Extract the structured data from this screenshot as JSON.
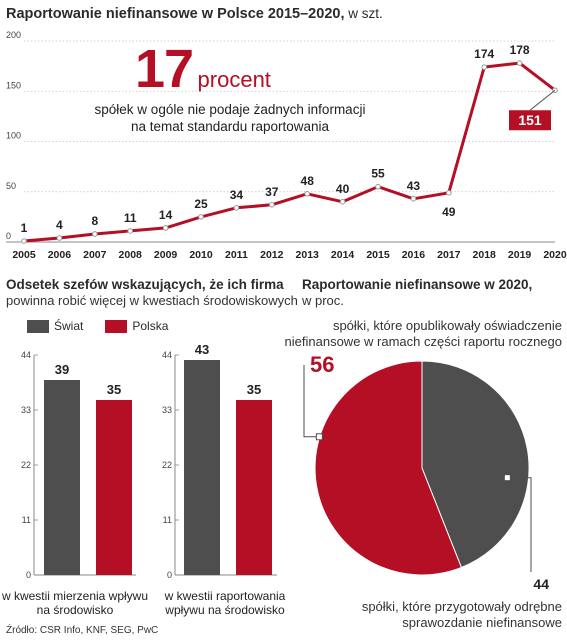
{
  "header": {
    "title": "Raportowanie niefinansowe w Polsce 2015–2020,",
    "unit": " w szt."
  },
  "callout": {
    "big_number": "17",
    "big_word": "procent",
    "line1": "spółek w ogóle nie podaje żadnych informacji",
    "line2": "na temat standardu raportowania"
  },
  "colors": {
    "accent_red": "#b50f25",
    "gray": "#4e4e4e",
    "axis": "#8a8a8a"
  },
  "chart_data": [
    {
      "type": "line",
      "title": "Raportowanie niefinansowe w Polsce 2015–2020, w szt.",
      "x": [
        "2005",
        "2006",
        "2007",
        "2008",
        "2009",
        "2010",
        "2011",
        "2012",
        "2013",
        "2014",
        "2015",
        "2016",
        "2017",
        "2018",
        "2019",
        "2020"
      ],
      "series": [
        {
          "values": [
            1,
            4,
            8,
            11,
            14,
            25,
            34,
            37,
            48,
            40,
            55,
            43,
            49,
            174,
            178,
            151
          ]
        }
      ],
      "highlight_last": true,
      "yticks": [
        "0",
        "50",
        "100",
        "150",
        "200"
      ],
      "ylim": [
        0,
        200
      ],
      "grid": true
    },
    {
      "type": "bar",
      "title": "Odsetek szefów wskazujących, że ich firma",
      "subtitle": "powinna robić więcej w kwestiach środowiskowych",
      "categories": [
        "w kwestii mierzenia wpływu na środowisko",
        "w kwestii raportowania wpływu na środowisko"
      ],
      "caption_lines": [
        [
          "w kwestii mierzenia wpływu",
          "na środowisko"
        ],
        [
          "w kwestii raportowania",
          "wpływu na środowisko"
        ]
      ],
      "series": [
        {
          "name": "Świat",
          "color": "#4e4e4e",
          "values": [
            39,
            43
          ]
        },
        {
          "name": "Polska",
          "color": "#b50f25",
          "values": [
            35,
            35
          ]
        }
      ],
      "yticks": [
        "0",
        "11",
        "22",
        "33",
        "44"
      ],
      "ylim": [
        0,
        44
      ],
      "grid": true,
      "legend": "top-left"
    },
    {
      "type": "pie",
      "title": "Raportowanie niefinansowe w 2020,",
      "subtitle": "w proc.",
      "slices": [
        {
          "value": 56,
          "label": "56",
          "color": "#b50f25",
          "note_lines": [
            "spółki, które opublikowały oświadczenie",
            "niefinansowe w ramach części raportu rocznego"
          ]
        },
        {
          "value": 44,
          "label": "44",
          "color": "#4e4e4e",
          "note_lines": [
            "spółki, które przygotowały odrębne",
            "sprawozdanie niefinansowe"
          ]
        }
      ]
    }
  ],
  "source": "Źródło: CSR Info, KNF, SEG, PwC"
}
